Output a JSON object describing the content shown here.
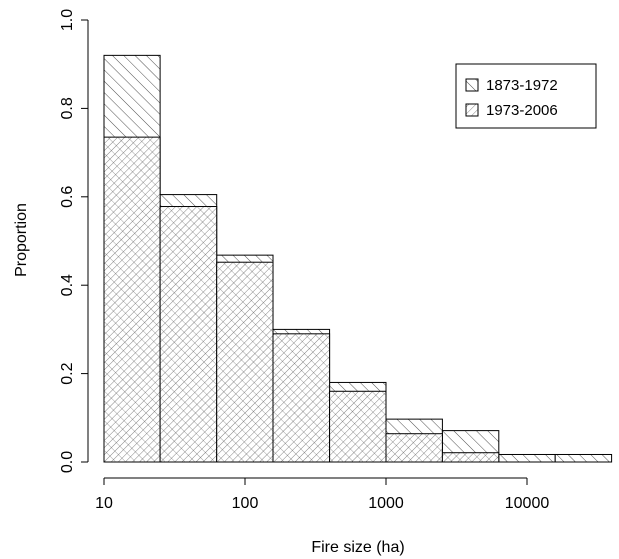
{
  "chart_data": {
    "type": "bar",
    "xlabel": "Fire size (ha)",
    "ylabel": "Proportion",
    "x_scale": "log",
    "xlim": [
      10,
      40000
    ],
    "ylim": [
      0,
      1.0
    ],
    "x_ticks": [
      10,
      100,
      1000,
      10000
    ],
    "x_tick_labels": [
      "10",
      "100",
      "1000",
      "10000"
    ],
    "y_ticks": [
      0,
      0.2,
      0.4,
      0.6,
      0.8,
      1.0
    ],
    "y_tick_labels": [
      "0.0",
      "0.2",
      "0.4",
      "0.6",
      "0.8",
      "1.0"
    ],
    "bin_edges": [
      10,
      25,
      63,
      158,
      398,
      1000,
      2512,
      6310,
      15849,
      39811
    ],
    "legend_position": "top-right",
    "series": [
      {
        "name": "1873-1972",
        "pattern": "diagonal-hatch-forward",
        "values": [
          0.92,
          0.605,
          0.468,
          0.3,
          0.18,
          0.097,
          0.071,
          0.017,
          0.017
        ]
      },
      {
        "name": "1973-2006",
        "pattern": "cross-hatch-dense",
        "values": [
          0.735,
          0.578,
          0.452,
          0.29,
          0.16,
          0.064,
          0.021,
          0.0,
          0.0
        ]
      }
    ],
    "grid": false,
    "box": false
  }
}
